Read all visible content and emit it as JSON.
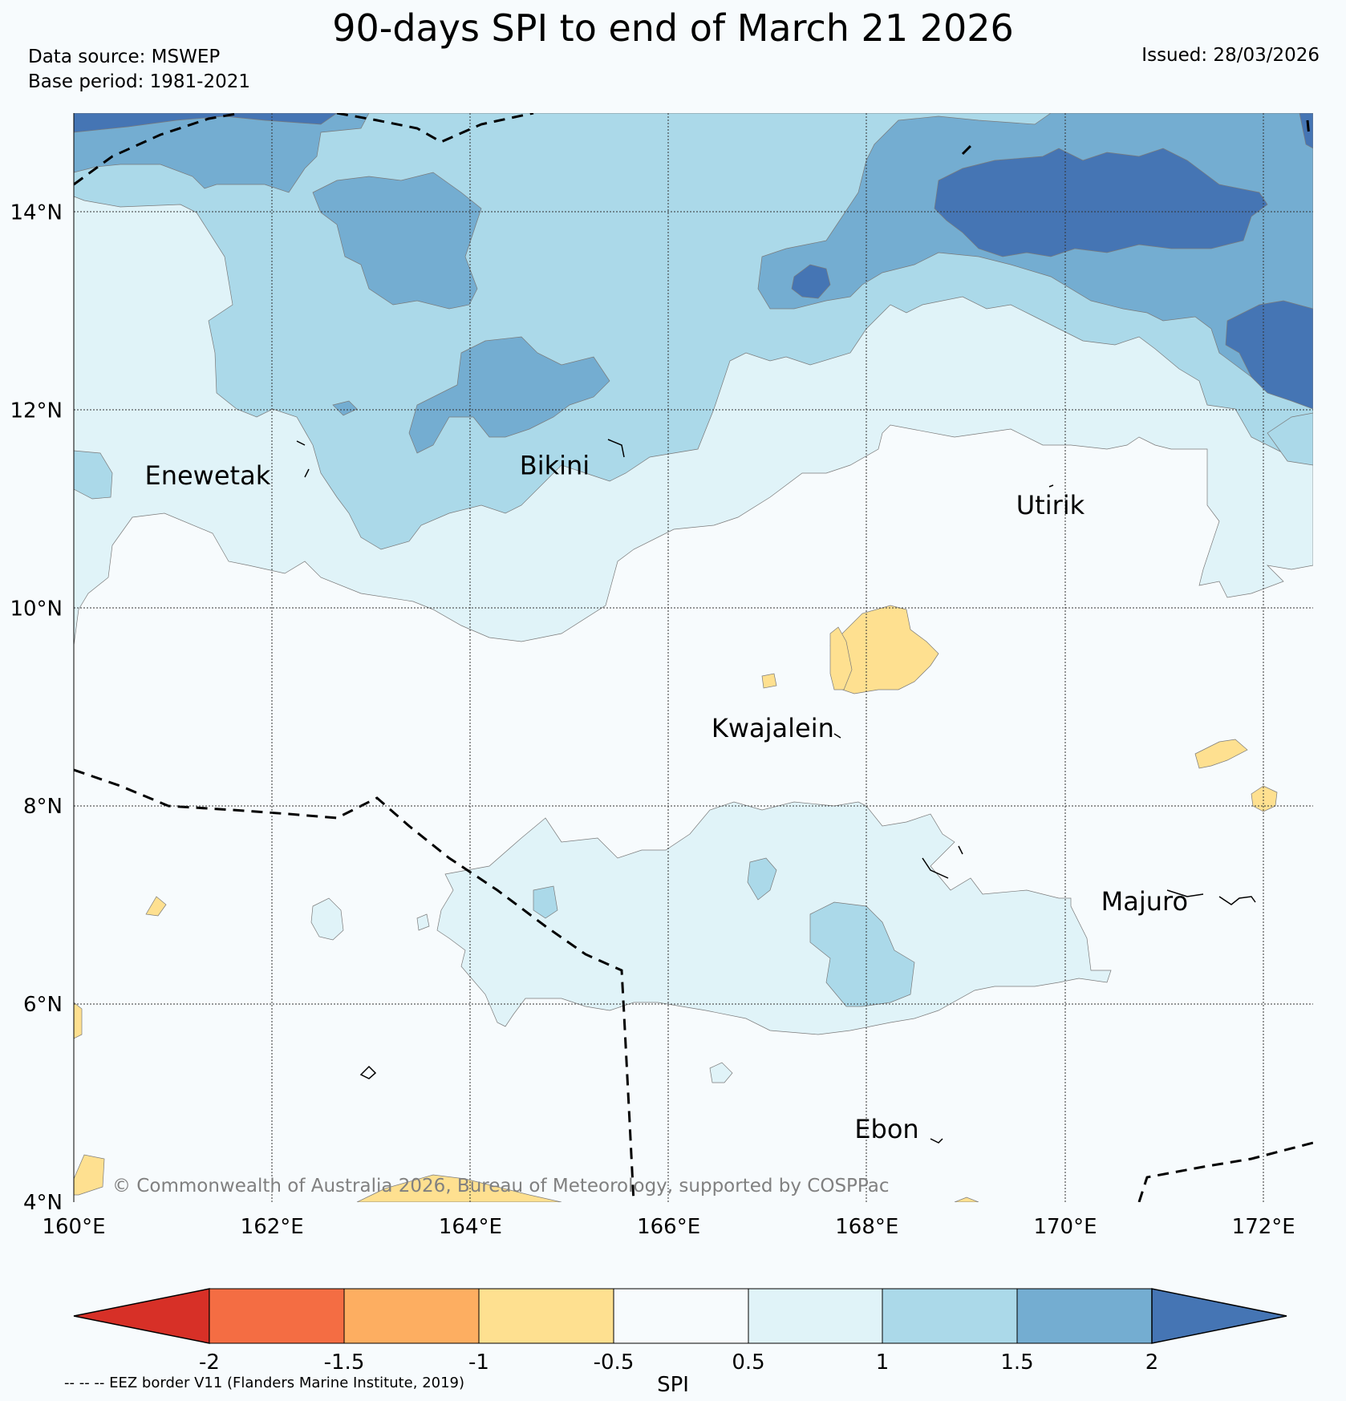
{
  "header": {
    "title": "90-days SPI to end of March 21 2026",
    "source_line": "Data source: MSWEP",
    "base_period_line": "Base period: 1981-2021",
    "issued": "Issued: 28/03/2026"
  },
  "map": {
    "lon_range": [
      160,
      172.5
    ],
    "lat_range": [
      4,
      15
    ],
    "x_ticks": [
      "160°E",
      "162°E",
      "164°E",
      "166°E",
      "168°E",
      "170°E",
      "172°E"
    ],
    "y_ticks": [
      "4°N",
      "6°N",
      "8°N",
      "10°N",
      "12°N",
      "14°N"
    ],
    "places": [
      {
        "name": "Enewetak",
        "lon": 161.35,
        "lat": 11.25
      },
      {
        "name": "Bikini",
        "lon": 164.85,
        "lat": 11.35
      },
      {
        "name": "Utirik",
        "lon": 169.85,
        "lat": 10.95
      },
      {
        "name": "Kwajalein",
        "lon": 167.05,
        "lat": 8.7
      },
      {
        "name": "Majuro",
        "lon": 170.8,
        "lat": 6.95
      },
      {
        "name": "Ebon",
        "lon": 168.2,
        "lat": 4.65
      }
    ],
    "copyright": "© Commonwealth of Australia 2026, Bureau of Meteorology, supported by COSPPac"
  },
  "colorbar": {
    "label": "SPI",
    "ticks": [
      "-2",
      "-1.5",
      "-1",
      "-0.5",
      "0.5",
      "1",
      "1.5",
      "2"
    ],
    "colors": {
      "lt_-2": "#d73027",
      "-2_-1.5": "#f46d43",
      "-1.5_-1": "#fdae61",
      "-1_-0.5": "#fee090",
      "-0.5_0.5": "#f7fbfd",
      "0.5_1": "#e0f3f8",
      "1_1.5": "#abd9e9",
      "1.5_2": "#74add1",
      "gt_2": "#4575b4"
    }
  },
  "footer": {
    "eez_note": "-- -- -- EEZ border V11 (Flanders Marine Institute, 2019)"
  }
}
